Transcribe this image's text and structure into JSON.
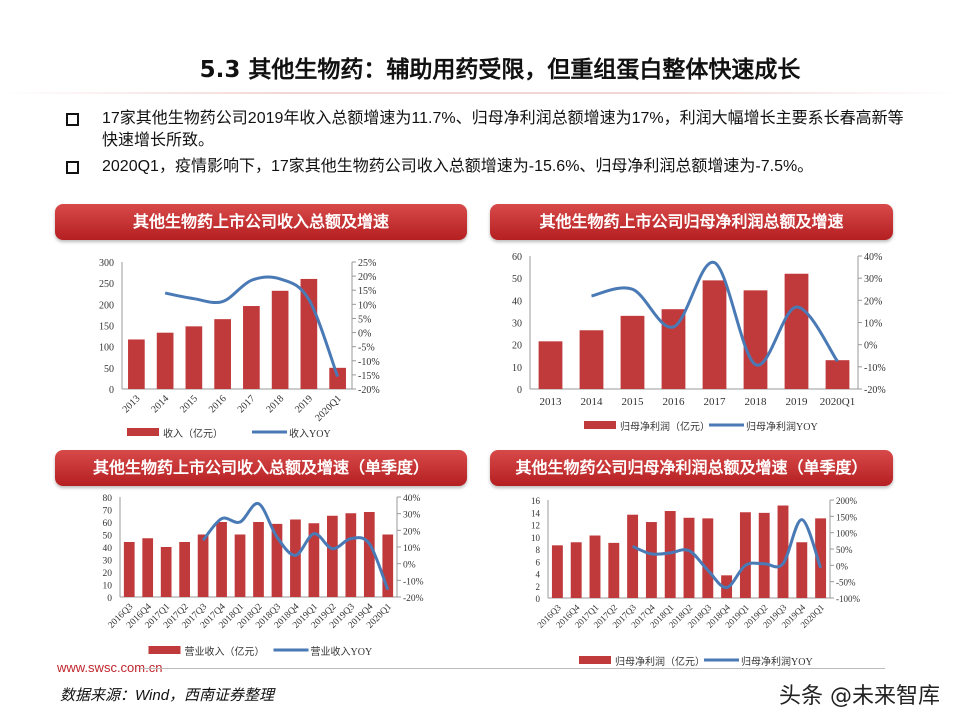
{
  "title": "5.3 其他生物药：辅助用药受限，但重组蛋白整体快速成长",
  "bullets": [
    "17家其他生物药公司2019年收入总额增速为11.7%、归母净利润总额增速为17%，利润大幅增长主要系长春高新等快速增长所致。",
    "2020Q1，疫情影响下，17家其他生物药公司收入总额增速为-15.6%、归母净利润总额增速为-7.5%。"
  ],
  "panels": [
    "其他生物药上市公司收入总额及增速",
    "其他生物药上市公司归母净利润总额及增速",
    "其他生物药上市公司收入总额及增速（单季度）",
    "其他生物药公司归母净利润总额及增速（单季度）"
  ],
  "colors": {
    "bar": "#c0393b",
    "line": "#4a7ab5",
    "header": "#c0262d"
  },
  "chart_data": [
    {
      "type": "bar+line",
      "categories": [
        "2013",
        "2014",
        "2015",
        "2016",
        "2017",
        "2018",
        "2019",
        "2020Q1"
      ],
      "series": [
        {
          "name": "收入（亿元）",
          "type": "bar",
          "axis": "left",
          "values": [
            117,
            133,
            148,
            165,
            196,
            232,
            260,
            50
          ]
        },
        {
          "name": "收入YOY",
          "type": "line",
          "axis": "right",
          "values": [
            null,
            14,
            12,
            11,
            18.5,
            19,
            11.7,
            -15.6
          ]
        }
      ],
      "ylim": [
        0,
        300
      ],
      "yticks": [
        0,
        50,
        100,
        150,
        200,
        250,
        300
      ],
      "y2lim": [
        -20,
        25
      ],
      "y2ticks": [
        -20,
        -15,
        -10,
        -5,
        0,
        5,
        10,
        15,
        20,
        25
      ],
      "y2unit": "%",
      "legend": "bottom"
    },
    {
      "type": "bar+line",
      "categories": [
        "2013",
        "2014",
        "2015",
        "2016",
        "2017",
        "2018",
        "2019",
        "2020Q1"
      ],
      "series": [
        {
          "name": "归母净利润（亿元）",
          "type": "bar",
          "axis": "left",
          "values": [
            21.5,
            26.5,
            33,
            36,
            49,
            44.5,
            52,
            13
          ]
        },
        {
          "name": "归母净利润YOY",
          "type": "line",
          "axis": "right",
          "values": [
            null,
            22,
            25,
            8,
            37,
            -9,
            17,
            -7.5
          ]
        }
      ],
      "ylim": [
        0,
        60
      ],
      "yticks": [
        0,
        10,
        20,
        30,
        40,
        50,
        60
      ],
      "y2lim": [
        -20,
        40
      ],
      "y2ticks": [
        -20,
        -10,
        0,
        10,
        20,
        30,
        40
      ],
      "y2unit": "%",
      "legend": "bottom"
    },
    {
      "type": "bar+line",
      "categories": [
        "2016Q3",
        "2016Q4",
        "2017Q1",
        "2017Q2",
        "2017Q3",
        "2017Q4",
        "2018Q1",
        "2018Q2",
        "2018Q3",
        "2018Q4",
        "2019Q1",
        "2019Q2",
        "2019Q3",
        "2019Q4",
        "2020Q1"
      ],
      "series": [
        {
          "name": "营业收入（亿元）",
          "type": "bar",
          "axis": "left",
          "values": [
            44,
            47,
            40,
            44,
            50,
            60,
            50,
            60,
            58.5,
            62,
            59,
            65,
            67,
            68,
            50
          ]
        },
        {
          "name": "营业收入YOY",
          "type": "line",
          "axis": "right",
          "values": [
            null,
            null,
            null,
            null,
            14,
            27,
            25,
            36,
            16,
            5,
            18,
            9,
            15,
            12,
            -15.6
          ]
        }
      ],
      "ylim": [
        0,
        80
      ],
      "yticks": [
        0,
        10,
        20,
        30,
        40,
        50,
        60,
        70,
        80
      ],
      "y2lim": [
        -20,
        40
      ],
      "y2ticks": [
        -20,
        -10,
        0,
        10,
        20,
        30,
        40
      ],
      "y2unit": "%",
      "legend": "bottom"
    },
    {
      "type": "bar+line",
      "categories": [
        "2016Q3",
        "2016Q4",
        "2017Q1",
        "2017Q2",
        "2017Q3",
        "2017Q4",
        "2018Q1",
        "2018Q2",
        "2018Q3",
        "2018Q4",
        "2019Q1",
        "2019Q2",
        "2019Q3",
        "2019Q4",
        "2020Q1"
      ],
      "series": [
        {
          "name": "归母净利润（亿元）",
          "type": "bar",
          "axis": "left",
          "values": [
            8.6,
            9.1,
            10.2,
            9,
            13.6,
            12.4,
            14.2,
            13.1,
            13,
            3.7,
            14,
            13.9,
            15.1,
            9.1,
            13
          ]
        },
        {
          "name": "归母净利润YOY",
          "type": "line",
          "axis": "right",
          "values": [
            null,
            null,
            null,
            null,
            58,
            35,
            38,
            45,
            -15,
            -68,
            0,
            5,
            5,
            140,
            -7.5
          ]
        }
      ],
      "ylim": [
        0,
        16
      ],
      "yticks": [
        0,
        2,
        4,
        6,
        8,
        10,
        12,
        14,
        16
      ],
      "y2lim": [
        -100,
        200
      ],
      "y2ticks": [
        -100,
        -50,
        0,
        50,
        100,
        150,
        200
      ],
      "y2unit": "%",
      "legend": "bottom"
    }
  ],
  "footer": {
    "website": "www.swsc.com.cn",
    "source": "数据来源：Wind，西南证券整理",
    "watermark": "头条 @未来智库"
  }
}
